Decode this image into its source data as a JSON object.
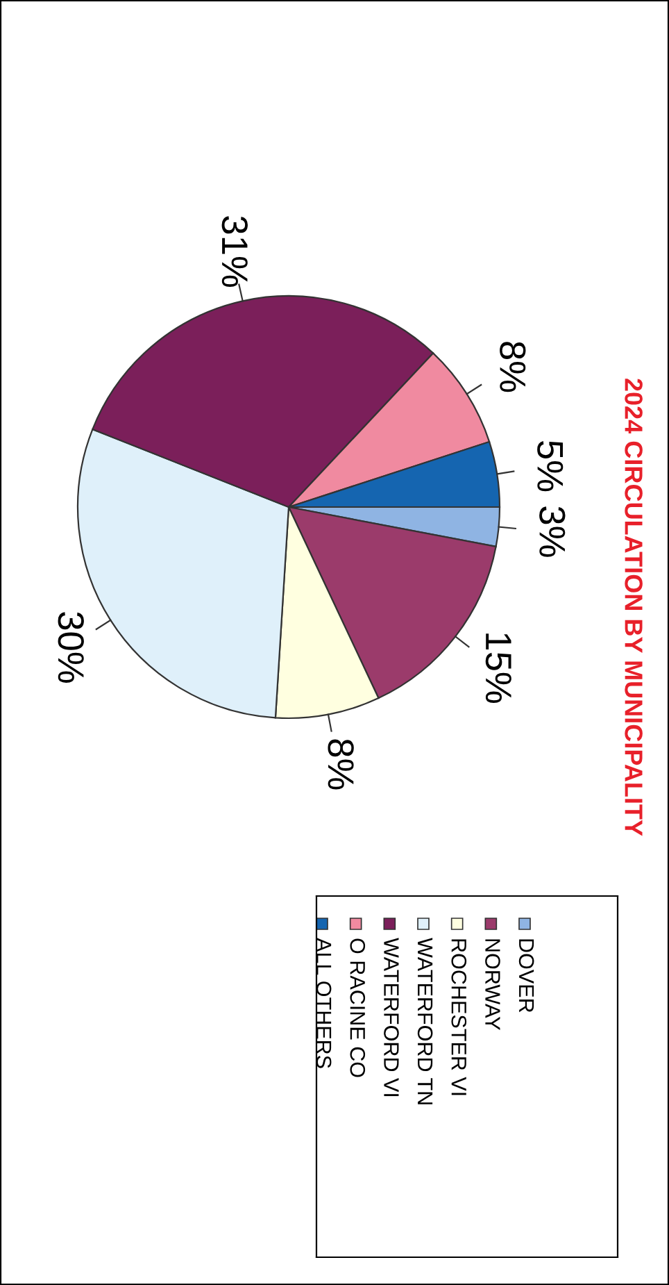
{
  "chart_data": {
    "type": "pie",
    "title": "2024 CIRCULATION BY MUNICIPALITY",
    "categories": [
      "DOVER",
      "NORWAY",
      "ROCHESTER VI",
      "WATERFORD TN",
      "WATERFORD VI",
      "O RACINE CO",
      "ALL OTHERS"
    ],
    "values": [
      3,
      15,
      8,
      30,
      31,
      8,
      5
    ],
    "colors": [
      "#8fb4e3",
      "#9b3b6b",
      "#ffffe0",
      "#dff0fa",
      "#7b1f5a",
      "#f08aa0",
      "#1565b0"
    ],
    "value_labels": [
      "3%",
      "15%",
      "8%",
      "30%",
      "31%",
      "8%",
      "5%"
    ],
    "legend": "bottom"
  }
}
